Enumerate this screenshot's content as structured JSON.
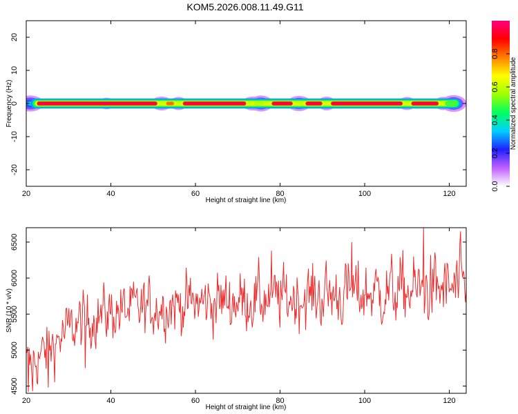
{
  "title": "KOM5.2026.008.11.49.G11",
  "chart_data": [
    {
      "type": "heatmap",
      "title": "KOM5.2026.008.11.49.G11",
      "xlabel": "Height of straight line (km)",
      "ylabel": "Frequency (Hz)",
      "xlim": [
        20,
        124
      ],
      "ylim": [
        -25,
        25
      ],
      "xticks": [
        20,
        40,
        60,
        80,
        100,
        120
      ],
      "yticks": [
        -20,
        -10,
        0,
        10,
        20
      ],
      "band_center_hz": 0,
      "band_halfwidth_hz": 1.5,
      "colorbar": {
        "label": "Normalized spectral amplitude",
        "range": [
          0,
          1
        ],
        "ticks": [
          0.0,
          0.2,
          0.4,
          0.6,
          0.8
        ],
        "colors": [
          "#ffffff",
          "#c060ff",
          "#2020ff",
          "#00d0ff",
          "#00ff60",
          "#a0ff00",
          "#ffff00",
          "#ff8000",
          "#ff0000",
          "#ff0080"
        ]
      },
      "peak_segments": [
        {
          "x0": 22.5,
          "x1": 51,
          "amplitude": 0.95
        },
        {
          "x0": 53,
          "x1": 55,
          "amplitude": 0.8
        },
        {
          "x0": 57,
          "x1": 72,
          "amplitude": 0.95
        },
        {
          "x0": 74,
          "x1": 76,
          "amplitude": 0.6
        },
        {
          "x0": 78,
          "x1": 83,
          "amplitude": 0.95
        },
        {
          "x0": 86,
          "x1": 90,
          "amplitude": 0.95
        },
        {
          "x0": 92,
          "x1": 109,
          "amplitude": 0.95
        },
        {
          "x0": 111,
          "x1": 117.5,
          "amplitude": 0.95
        },
        {
          "x0": 119,
          "x1": 122,
          "amplitude": 0.5
        }
      ],
      "halo_spots": [
        {
          "x": 21,
          "spread": 2.2,
          "amplitude": 0.55
        },
        {
          "x": 39,
          "spread": 1.2,
          "amplitude": 0.25
        },
        {
          "x": 52,
          "spread": 1.8,
          "amplitude": 0.4
        },
        {
          "x": 56,
          "spread": 1.5,
          "amplitude": 0.35
        },
        {
          "x": 73.5,
          "spread": 1.8,
          "amplitude": 0.4
        },
        {
          "x": 75.5,
          "spread": 2.0,
          "amplitude": 0.55
        },
        {
          "x": 84.5,
          "spread": 2.0,
          "amplitude": 0.5
        },
        {
          "x": 91,
          "spread": 1.5,
          "amplitude": 0.4
        },
        {
          "x": 110,
          "spread": 1.5,
          "amplitude": 0.35
        },
        {
          "x": 118.5,
          "spread": 1.5,
          "amplitude": 0.35
        },
        {
          "x": 121,
          "spread": 2.2,
          "amplitude": 0.6
        }
      ]
    },
    {
      "type": "line",
      "xlabel": "Height of straight line (km)",
      "ylabel": "SNR (10 * v/v)",
      "xlim": [
        20,
        124
      ],
      "ylim": [
        4400,
        6700
      ],
      "xticks": [
        20,
        40,
        60,
        80,
        100,
        120
      ],
      "yticks": [
        4500,
        5000,
        5500,
        6000,
        6500
      ],
      "line_color": "#ee2a2a",
      "sample_count": 620,
      "trend": {
        "x": [
          20,
          22,
          25,
          28,
          30,
          33,
          36,
          40,
          45,
          50,
          55,
          60,
          70,
          80,
          90,
          100,
          110,
          120,
          124
        ],
        "y": [
          4780,
          4850,
          5000,
          5170,
          5280,
          5380,
          5460,
          5520,
          5560,
          5600,
          5630,
          5650,
          5690,
          5720,
          5760,
          5790,
          5820,
          5850,
          5850
        ]
      },
      "noise_amplitude": {
        "x": [
          20,
          30,
          40,
          60,
          80,
          100,
          124
        ],
        "y": [
          230,
          240,
          240,
          250,
          260,
          280,
          300
        ]
      },
      "notable_points": [
        {
          "x": 20.5,
          "y": 4420
        },
        {
          "x": 21.5,
          "y": 4430
        },
        {
          "x": 25.2,
          "y": 4480
        },
        {
          "x": 34,
          "y": 4750
        },
        {
          "x": 78,
          "y": 6380
        },
        {
          "x": 97,
          "y": 6500
        },
        {
          "x": 114,
          "y": 6700
        },
        {
          "x": 122.7,
          "y": 6650
        }
      ]
    }
  ]
}
